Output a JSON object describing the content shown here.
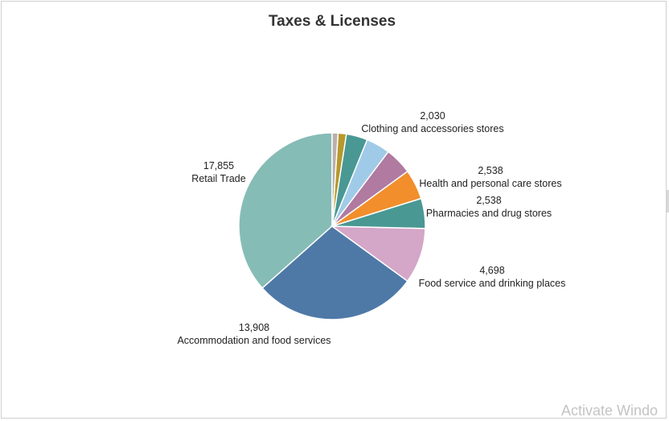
{
  "chart_data": {
    "type": "pie",
    "title": "Taxes & Licenses",
    "slices": [
      {
        "label": "Retail Trade",
        "value": 17855,
        "value_label": "17,855",
        "color": "#86bcb6",
        "show_label": true
      },
      {
        "label": "Accommodation and food services",
        "value": 13908,
        "value_label": "13,908",
        "color": "#4e79a7",
        "show_label": true
      },
      {
        "label": "Food service and drinking places",
        "value": 4698,
        "value_label": "4,698",
        "color": "#d4a6c8",
        "show_label": true
      },
      {
        "label": "Pharmacies and drug stores",
        "value": 2538,
        "value_label": "2,538",
        "color": "#499894",
        "show_label": true
      },
      {
        "label": "Health and personal care stores",
        "value": 2538,
        "value_label": "2,538",
        "color": "#f28e2b",
        "show_label": true
      },
      {
        "label": "",
        "value": 2300,
        "value_label": "",
        "color": "#b07aa1",
        "show_label": false
      },
      {
        "label": "Clothing and accessories stores",
        "value": 2030,
        "value_label": "2,030",
        "color": "#a0cbe8",
        "show_label": true
      },
      {
        "label": "",
        "value": 1800,
        "value_label": "",
        "color": "#499894",
        "show_label": false
      },
      {
        "label": "",
        "value": 700,
        "value_label": "",
        "color": "#b6992d",
        "show_label": false
      },
      {
        "label": "",
        "value": 500,
        "value_label": "",
        "color": "#bab0ac",
        "show_label": false
      }
    ]
  },
  "watermark": "Activate Windo"
}
